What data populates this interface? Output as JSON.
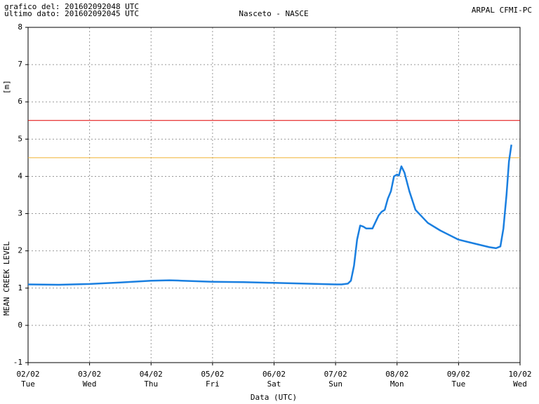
{
  "chart_data": {
    "type": "line",
    "header_left": [
      "grafico del: 201602092048 UTC",
      "ultimo dato: 201602092045 UTC"
    ],
    "title": "Nasceto - NASCE",
    "header_right": "ARPAL CFMI-PC",
    "y_label": "MEAN CREEK LEVEL",
    "y_unit": "[m]",
    "x_label": "Data (UTC)",
    "xlim": [
      0,
      8
    ],
    "xticks": [
      {
        "value": 0,
        "label": "02/02",
        "day": "Tue"
      },
      {
        "value": 1,
        "label": "03/02",
        "day": "Wed"
      },
      {
        "value": 2,
        "label": "04/02",
        "day": "Thu"
      },
      {
        "value": 3,
        "label": "05/02",
        "day": "Fri"
      },
      {
        "value": 4,
        "label": "06/02",
        "day": "Sat"
      },
      {
        "value": 5,
        "label": "07/02",
        "day": "Sun"
      },
      {
        "value": 6,
        "label": "08/02",
        "day": "Mon"
      },
      {
        "value": 7,
        "label": "09/02",
        "day": "Tue"
      },
      {
        "value": 8,
        "label": "10/02",
        "day": "Wed"
      }
    ],
    "ylim": [
      -1,
      8
    ],
    "yticks": [
      -1,
      0,
      1,
      2,
      3,
      4,
      5,
      6,
      7,
      8
    ],
    "grid": true,
    "thresholds": [
      {
        "value": 5.5,
        "color": "#e00000"
      },
      {
        "value": 4.5,
        "color": "#f0b030"
      }
    ],
    "series": [
      {
        "color": "#1a7fe0",
        "x": [
          0,
          0.5,
          1,
          1.5,
          2,
          2.3,
          2.5,
          3,
          3.5,
          4,
          4.5,
          5,
          5.1,
          5.2,
          5.25,
          5.3,
          5.35,
          5.4,
          5.45,
          5.5,
          5.6,
          5.7,
          5.75,
          5.8,
          5.85,
          5.9,
          5.95,
          6.0,
          6.03,
          6.07,
          6.12,
          6.2,
          6.3,
          6.5,
          6.7,
          7.0,
          7.2,
          7.5,
          7.61,
          7.68,
          7.73,
          7.78,
          7.82,
          7.86
        ],
        "values": [
          1.1,
          1.09,
          1.11,
          1.15,
          1.2,
          1.21,
          1.2,
          1.17,
          1.16,
          1.14,
          1.12,
          1.1,
          1.1,
          1.12,
          1.2,
          1.6,
          2.3,
          2.68,
          2.65,
          2.6,
          2.6,
          2.95,
          3.05,
          3.1,
          3.4,
          3.6,
          4.0,
          4.05,
          4.02,
          4.27,
          4.1,
          3.6,
          3.1,
          2.75,
          2.55,
          2.3,
          2.22,
          2.1,
          2.07,
          2.12,
          2.6,
          3.5,
          4.4,
          4.85
        ]
      }
    ]
  }
}
